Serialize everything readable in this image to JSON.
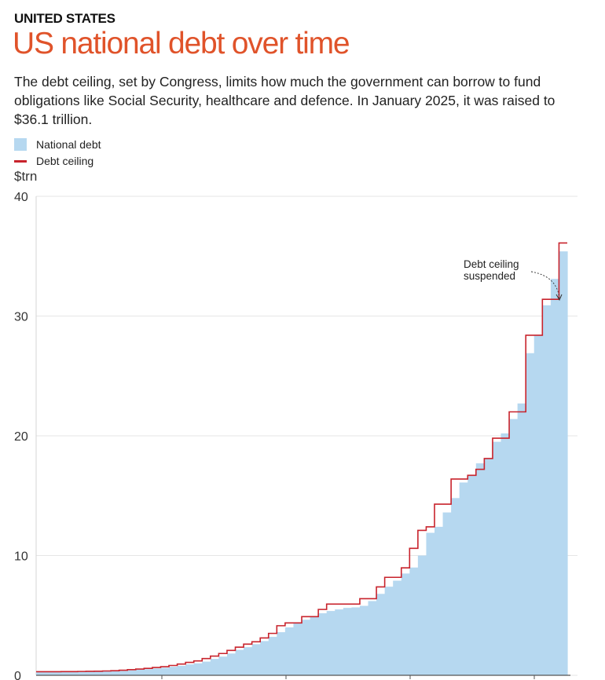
{
  "header": {
    "kicker": "UNITED STATES",
    "title": "US national debt over time",
    "subtitle": "The debt ceiling, set by Congress, limits how much the government can borrow to fund obligations like Social Security, healthcare and defence. In January 2025, it was raised to $36.1 trillion."
  },
  "legend": {
    "debt_label": "National debt",
    "ceiling_label": "Debt ceiling"
  },
  "unit_label": "$trn",
  "annotation": {
    "line1": "Debt ceiling",
    "line2": "suspended"
  },
  "colors": {
    "debt_fill": "#b6d8f0",
    "ceiling_line": "#c8232c",
    "title": "#e0532a",
    "grid": "#e6e6e6"
  },
  "chart_data": {
    "type": "area",
    "ylabel": "$trn",
    "ylim": [
      0,
      40
    ],
    "yticks": [
      "0",
      "10",
      "20",
      "30",
      "40"
    ],
    "grid": true,
    "legend_position": "top-left",
    "series": [
      {
        "name": "National debt",
        "style": "stepped-area",
        "values": [
          0.27,
          0.27,
          0.28,
          0.28,
          0.29,
          0.29,
          0.3,
          0.31,
          0.32,
          0.34,
          0.37,
          0.41,
          0.46,
          0.51,
          0.57,
          0.63,
          0.71,
          0.79,
          0.91,
          1.0,
          1.14,
          1.37,
          1.56,
          1.82,
          2.12,
          2.35,
          2.6,
          2.86,
          3.21,
          3.6,
          4.0,
          4.35,
          4.64,
          4.92,
          5.18,
          5.37,
          5.5,
          5.63,
          5.67,
          5.8,
          6.2,
          6.8,
          7.4,
          7.9,
          8.5,
          9.0,
          10.0,
          11.9,
          12.4,
          13.6,
          14.8,
          16.1,
          16.7,
          17.7,
          18.1,
          19.5,
          20.2,
          21.4,
          22.7,
          26.9,
          28.4,
          30.9,
          33.1,
          35.4
        ]
      },
      {
        "name": "Debt ceiling",
        "style": "step-line",
        "values": [
          0.3,
          0.3,
          0.3,
          0.31,
          0.31,
          0.32,
          0.33,
          0.34,
          0.36,
          0.38,
          0.42,
          0.47,
          0.52,
          0.58,
          0.65,
          0.72,
          0.82,
          0.94,
          1.08,
          1.2,
          1.4,
          1.6,
          1.82,
          2.08,
          2.35,
          2.6,
          2.8,
          3.12,
          3.5,
          4.14,
          4.37,
          4.37,
          4.9,
          4.9,
          5.5,
          5.95,
          5.95,
          5.95,
          5.95,
          6.4,
          6.4,
          7.38,
          8.18,
          8.18,
          8.97,
          10.6,
          12.1,
          12.4,
          14.29,
          14.29,
          16.39,
          16.39,
          16.7,
          17.2,
          18.1,
          19.8,
          19.8,
          22.0,
          22.0,
          28.4,
          28.4,
          31.4,
          31.4,
          36.1
        ]
      }
    ],
    "annotations": [
      {
        "text": "Debt ceiling suspended",
        "series": "Debt ceiling",
        "y": 31.4
      }
    ]
  }
}
